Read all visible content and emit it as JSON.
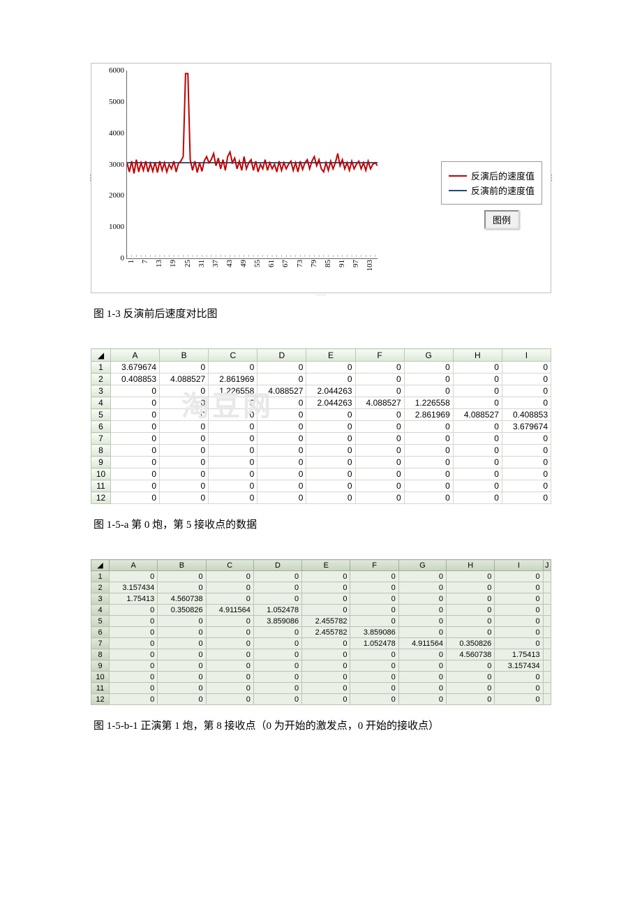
{
  "chart": {
    "type": "line",
    "ylim": [
      0,
      6000
    ],
    "ytick_step": 1000,
    "yticks": [
      0,
      1000,
      2000,
      3000,
      4000,
      5000,
      6000
    ],
    "xticks": [
      1,
      7,
      13,
      19,
      25,
      31,
      37,
      43,
      49,
      55,
      61,
      67,
      73,
      79,
      85,
      91,
      97,
      103
    ],
    "x_count": 108,
    "axis_color": "#666666",
    "background_color": "#ffffff",
    "red": {
      "label": "反演后的速度值",
      "color": "#c00000",
      "values": [
        3000,
        2700,
        3050,
        2650,
        3100,
        2700,
        3000,
        2750,
        3050,
        2700,
        2980,
        2720,
        3020,
        2680,
        3050,
        2750,
        3000,
        2700,
        2950,
        2800,
        3050,
        2700,
        2980,
        3050,
        3200,
        5900,
        5900,
        3100,
        2750,
        3050,
        2680,
        3000,
        2720,
        3060,
        3200,
        3000,
        3100,
        3300,
        2900,
        3150,
        2800,
        3100,
        2750,
        3200,
        3350,
        3000,
        3150,
        2800,
        3050,
        2750,
        3200,
        2800,
        3000,
        3100,
        2750,
        3050,
        2700,
        2950,
        2800,
        3100,
        2750,
        3000,
        2800,
        2950,
        2700,
        3050,
        2750,
        3000,
        2800,
        2950,
        3050,
        2750,
        3000,
        2700,
        3050,
        2780,
        3000,
        3100,
        2800,
        3050,
        3200,
        2900,
        3100,
        2800,
        2700,
        3000,
        2750,
        3050,
        2800,
        3000,
        3300,
        2900,
        3100,
        2800,
        3000,
        2750,
        3050,
        2800,
        2950,
        3050,
        2800,
        3000,
        2750,
        3050,
        2800,
        2950,
        3000,
        2900
      ]
    },
    "blue": {
      "label": "反演前的速度值",
      "color": "#1f497d",
      "values": [
        3000,
        3000,
        3000,
        3000,
        3000,
        3000,
        3000,
        3000,
        3000,
        3000,
        3000,
        3000,
        3000,
        3000,
        3000,
        3000,
        3000,
        3000,
        3000,
        3000,
        3000,
        3000,
        3000,
        3000,
        3000,
        3000,
        3000,
        3000,
        3000,
        3000,
        3000,
        3000,
        3000,
        3000,
        3000,
        3000,
        3000,
        3000,
        3000,
        3000,
        3000,
        3000,
        3000,
        3000,
        3000,
        3000,
        3000,
        3000,
        3000,
        3000,
        3000,
        3000,
        3000,
        3000,
        3000,
        3000,
        3000,
        3000,
        3000,
        3000,
        3000,
        3000,
        3000,
        3000,
        3000,
        3000,
        3000,
        3000,
        3000,
        3000,
        3000,
        3000,
        3000,
        3000,
        3000,
        3000,
        3000,
        3000,
        3000,
        3000,
        3000,
        3000,
        3000,
        3000,
        3000,
        3000,
        3000,
        3000,
        3000,
        3000,
        3000,
        3000,
        3000,
        3000,
        3000,
        3000,
        3000,
        3000,
        3000,
        3000,
        3000,
        3000,
        3000,
        3000,
        3000,
        3000,
        3000,
        3000
      ]
    },
    "legend_button": "图例",
    "legend_border": "#999999",
    "line_width": 2,
    "tick_fontsize": 11
  },
  "caption1": "图 1-3 反演前后速度对比图",
  "table1": {
    "columns": [
      "A",
      "B",
      "C",
      "D",
      "E",
      "F",
      "G",
      "H",
      "I"
    ],
    "header_bg": "#e8f0e0",
    "cell_border": "#d0d8cc",
    "rows": [
      [
        "3.679674",
        "0",
        "0",
        "0",
        "0",
        "0",
        "0",
        "0",
        "0"
      ],
      [
        "0.408853",
        "4.088527",
        "2.861969",
        "0",
        "0",
        "0",
        "0",
        "0",
        "0"
      ],
      [
        "0",
        "0",
        "1.226558",
        "4.088527",
        "2.044263",
        "0",
        "0",
        "0",
        "0"
      ],
      [
        "0",
        "0",
        "0",
        "0",
        "2.044263",
        "4.088527",
        "1.226558",
        "0",
        "0"
      ],
      [
        "0",
        "0",
        "0",
        "0",
        "0",
        "0",
        "2.861969",
        "4.088527",
        "0.408853"
      ],
      [
        "0",
        "0",
        "0",
        "0",
        "0",
        "0",
        "0",
        "0",
        "3.679674"
      ],
      [
        "0",
        "0",
        "0",
        "0",
        "0",
        "0",
        "0",
        "0",
        "0"
      ],
      [
        "0",
        "0",
        "0",
        "0",
        "0",
        "0",
        "0",
        "0",
        "0"
      ],
      [
        "0",
        "0",
        "0",
        "0",
        "0",
        "0",
        "0",
        "0",
        "0"
      ],
      [
        "0",
        "0",
        "0",
        "0",
        "0",
        "0",
        "0",
        "0",
        "0"
      ],
      [
        "0",
        "0",
        "0",
        "0",
        "0",
        "0",
        "0",
        "0",
        "0"
      ],
      [
        "0",
        "0",
        "0",
        "0",
        "0",
        "0",
        "0",
        "0",
        "0"
      ]
    ]
  },
  "caption2": "图 1-5-a 第 0 炮，第 5 接收点的数据",
  "table2": {
    "columns": [
      "A",
      "B",
      "C",
      "D",
      "E",
      "F",
      "G",
      "H",
      "I",
      "J"
    ],
    "header_bg": "#d4e0cc",
    "cell_border": "#b8c4b0",
    "rows": [
      [
        "0",
        "0",
        "0",
        "0",
        "0",
        "0",
        "0",
        "0",
        "0",
        ""
      ],
      [
        "3.157434",
        "0",
        "0",
        "0",
        "0",
        "0",
        "0",
        "0",
        "0",
        ""
      ],
      [
        "1.75413",
        "4.560738",
        "0",
        "0",
        "0",
        "0",
        "0",
        "0",
        "0",
        ""
      ],
      [
        "0",
        "0.350826",
        "4.911564",
        "1.052478",
        "0",
        "0",
        "0",
        "0",
        "0",
        ""
      ],
      [
        "0",
        "0",
        "0",
        "3.859086",
        "2.455782",
        "0",
        "0",
        "0",
        "0",
        ""
      ],
      [
        "0",
        "0",
        "0",
        "0",
        "2.455782",
        "3.859086",
        "0",
        "0",
        "0",
        ""
      ],
      [
        "0",
        "0",
        "0",
        "0",
        "0",
        "1.052478",
        "4.911564",
        "0.350826",
        "0",
        ""
      ],
      [
        "0",
        "0",
        "0",
        "0",
        "0",
        "0",
        "0",
        "4.560738",
        "1.75413",
        ""
      ],
      [
        "0",
        "0",
        "0",
        "0",
        "0",
        "0",
        "0",
        "0",
        "3.157434",
        ""
      ],
      [
        "0",
        "0",
        "0",
        "0",
        "0",
        "0",
        "0",
        "0",
        "0",
        ""
      ],
      [
        "0",
        "0",
        "0",
        "0",
        "0",
        "0",
        "0",
        "0",
        "0",
        ""
      ],
      [
        "0",
        "0",
        "0",
        "0",
        "0",
        "0",
        "0",
        "0",
        "0",
        ""
      ]
    ]
  },
  "caption3": "图 1-5-b-1 正演第 1 炮，第 8 接收点（0 为开始的激发点，0 开始的接收点）",
  "watermark_text": "淘豆网"
}
